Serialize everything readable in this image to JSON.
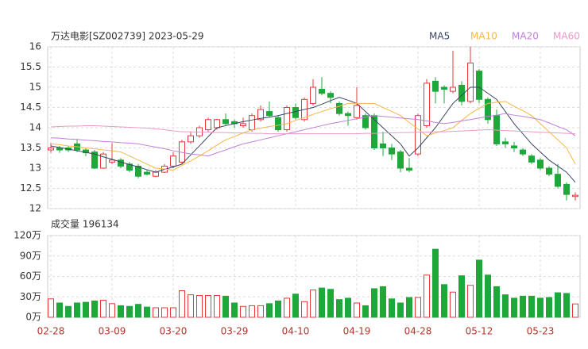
{
  "chart_data": [
    {
      "type": "candlestick",
      "title": "万达电影[SZ002739] 2023-05-29",
      "categories": [
        "02-28",
        null,
        null,
        null,
        null,
        null,
        null,
        "03-09",
        null,
        null,
        null,
        null,
        null,
        null,
        "03-20",
        null,
        null,
        null,
        null,
        null,
        null,
        "03-29",
        null,
        null,
        null,
        null,
        null,
        null,
        "04-10",
        null,
        null,
        null,
        null,
        null,
        null,
        "04-19",
        null,
        null,
        null,
        null,
        null,
        null,
        "04-28",
        null,
        null,
        null,
        null,
        null,
        null,
        "05-12",
        null,
        null,
        null,
        null,
        null,
        null,
        "05-23",
        null,
        null,
        null,
        null
      ],
      "open": [
        13.45,
        13.5,
        13.5,
        13.6,
        13.45,
        13.4,
        13.0,
        13.15,
        13.2,
        13.1,
        13.05,
        12.9,
        12.8,
        12.9,
        13.05,
        13.15,
        13.65,
        13.8,
        13.95,
        14.0,
        14.2,
        14.15,
        14.05,
        13.95,
        14.2,
        14.4,
        14.25,
        13.95,
        14.5,
        14.2,
        14.6,
        14.95,
        14.85,
        14.6,
        14.35,
        14.25,
        14.3,
        14.3,
        13.6,
        13.5,
        13.4,
        13.0,
        13.35,
        14.05,
        15.15,
        15.0,
        14.9,
        15.05,
        14.65,
        15.4,
        14.7,
        14.3,
        13.65,
        13.55,
        13.45,
        13.3,
        13.2,
        13.0,
        12.85,
        12.6,
        12.3
      ],
      "close": [
        13.5,
        13.45,
        13.45,
        13.45,
        13.38,
        13.0,
        13.35,
        13.2,
        13.05,
        12.95,
        12.8,
        12.85,
        12.9,
        13.05,
        13.3,
        13.65,
        13.8,
        14.0,
        14.2,
        14.2,
        14.1,
        14.1,
        14.1,
        14.3,
        14.45,
        14.3,
        13.95,
        14.5,
        14.25,
        14.7,
        15.0,
        14.85,
        14.75,
        14.35,
        14.3,
        14.55,
        14.0,
        13.5,
        13.5,
        13.35,
        13.0,
        12.95,
        14.3,
        15.1,
        14.9,
        14.95,
        15.0,
        14.65,
        15.6,
        14.7,
        14.2,
        13.6,
        13.6,
        13.5,
        13.35,
        13.15,
        13.0,
        12.85,
        12.55,
        12.35,
        12.33
      ],
      "high": [
        13.62,
        13.55,
        13.55,
        13.72,
        13.5,
        13.45,
        13.4,
        13.62,
        13.25,
        13.15,
        13.1,
        12.95,
        12.95,
        13.1,
        13.4,
        13.7,
        13.9,
        14.05,
        14.25,
        14.22,
        14.35,
        14.2,
        14.25,
        14.35,
        14.55,
        14.65,
        14.3,
        14.55,
        14.6,
        14.75,
        15.2,
        15.25,
        14.9,
        14.65,
        14.4,
        15.0,
        14.35,
        14.35,
        13.9,
        13.6,
        13.45,
        13.25,
        14.35,
        15.2,
        15.25,
        15.05,
        15.9,
        15.15,
        16.0,
        15.45,
        14.75,
        14.45,
        13.75,
        13.65,
        13.5,
        13.35,
        13.25,
        13.05,
        13.1,
        12.65,
        12.4
      ],
      "low": [
        13.38,
        13.38,
        13.4,
        13.4,
        13.3,
        12.98,
        12.98,
        13.1,
        13.0,
        12.9,
        12.75,
        12.82,
        12.78,
        12.88,
        13.0,
        13.1,
        13.6,
        13.75,
        13.9,
        13.95,
        14.05,
        14.0,
        14.0,
        13.9,
        14.15,
        14.25,
        13.9,
        13.9,
        14.2,
        14.15,
        14.55,
        14.8,
        14.6,
        14.3,
        14.05,
        14.2,
        13.95,
        13.45,
        13.3,
        13.2,
        12.9,
        12.9,
        13.3,
        14.0,
        14.6,
        14.6,
        14.85,
        14.55,
        14.6,
        14.6,
        14.1,
        13.55,
        13.5,
        13.4,
        13.3,
        13.1,
        12.95,
        12.8,
        12.5,
        12.2,
        12.2
      ],
      "up_color": "#e8383d",
      "down_color": "#1fa83a",
      "series": [
        {
          "name": "MA5",
          "color": "#3b4663",
          "values": [
            13.55,
            13.51,
            13.47,
            13.43,
            13.39,
            13.35,
            13.28,
            13.22,
            13.15,
            13.09,
            13.03,
            12.96,
            12.9,
            12.97,
            13.03,
            13.1,
            13.33,
            13.55,
            13.78,
            14.0,
            14.05,
            14.1,
            14.15,
            14.19,
            14.23,
            14.26,
            14.3,
            14.35,
            14.4,
            14.45,
            14.5,
            14.58,
            14.67,
            14.75,
            14.68,
            14.6,
            14.4,
            14.2,
            14.0,
            13.8,
            13.6,
            13.3,
            13.5,
            13.75,
            14.0,
            14.3,
            14.6,
            14.8,
            15.0,
            15.0,
            14.85,
            14.7,
            14.4,
            14.1,
            13.85,
            13.6,
            13.4,
            13.2,
            13.05,
            12.9,
            12.65
          ]
        },
        {
          "name": "MA10",
          "color": "#f5b84a",
          "values": [
            13.6,
            13.58,
            13.55,
            13.53,
            13.5,
            13.48,
            13.45,
            13.43,
            13.4,
            13.3,
            13.2,
            13.1,
            13.0,
            12.98,
            12.95,
            13.07,
            13.18,
            13.3,
            13.43,
            13.57,
            13.7,
            13.78,
            13.87,
            13.95,
            13.99,
            14.03,
            14.06,
            14.1,
            14.18,
            14.25,
            14.33,
            14.4,
            14.47,
            14.53,
            14.6,
            14.6,
            14.6,
            14.6,
            14.5,
            14.4,
            14.3,
            14.13,
            13.97,
            13.8,
            13.87,
            13.93,
            14.0,
            14.18,
            14.35,
            14.48,
            14.6,
            14.63,
            14.65,
            14.53,
            14.42,
            14.3,
            14.1,
            13.9,
            13.7,
            13.5,
            13.1
          ]
        },
        {
          "name": "MA20",
          "color": "#c17fd8",
          "values": [
            13.75,
            13.74,
            13.72,
            13.71,
            13.69,
            13.68,
            13.66,
            13.65,
            13.63,
            13.62,
            13.6,
            13.56,
            13.52,
            13.48,
            13.43,
            13.39,
            13.35,
            13.33,
            13.3,
            13.38,
            13.45,
            13.53,
            13.6,
            13.65,
            13.7,
            13.75,
            13.8,
            13.85,
            13.9,
            13.95,
            14.0,
            14.05,
            14.1,
            14.14,
            14.18,
            14.22,
            14.26,
            14.3,
            14.28,
            14.26,
            14.24,
            14.22,
            14.2,
            14.17,
            14.13,
            14.1,
            14.13,
            14.17,
            14.2,
            14.24,
            14.28,
            14.31,
            14.35,
            14.31,
            14.28,
            14.24,
            14.2,
            14.12,
            14.03,
            13.95,
            13.8
          ]
        },
        {
          "name": "MA60",
          "color": "#e99bc9",
          "values": [
            14.02,
            14.03,
            14.04,
            14.04,
            14.05,
            14.05,
            14.04,
            14.03,
            14.02,
            14.01,
            14.0,
            13.99,
            13.97,
            13.95,
            13.92,
            13.9,
            13.9,
            13.89,
            13.89,
            13.88,
            13.88,
            13.87,
            13.87,
            13.86,
            13.86,
            13.85,
            13.85,
            13.85,
            13.85,
            13.85,
            13.85,
            13.85,
            13.85,
            13.85,
            13.85,
            13.85,
            13.86,
            13.86,
            13.87,
            13.87,
            13.88,
            13.88,
            13.89,
            13.89,
            13.9,
            13.9,
            13.91,
            13.92,
            13.93,
            13.94,
            13.95,
            13.94,
            13.93,
            13.92,
            13.91,
            13.9,
            13.89,
            13.88,
            13.87,
            13.86,
            13.85
          ]
        }
      ],
      "ylim": [
        12,
        16
      ],
      "yticks": [
        12,
        12.5,
        13,
        13.5,
        14,
        14.5,
        15,
        15.5,
        16
      ],
      "grid": true
    },
    {
      "type": "bar",
      "title": "成交量 196134",
      "values": [
        27,
        21,
        16,
        21,
        22,
        24,
        25,
        20,
        17,
        16,
        19,
        15,
        14,
        14,
        14,
        39,
        33,
        32,
        32,
        32,
        31,
        21,
        16,
        17,
        17,
        20,
        24,
        28,
        34,
        23,
        40,
        43,
        41,
        26,
        28,
        21,
        17,
        42,
        45,
        27,
        21,
        29,
        29,
        62,
        100,
        48,
        37,
        61,
        47,
        84,
        62,
        45,
        33,
        28,
        31,
        31,
        28,
        29,
        36,
        35,
        19.61
      ],
      "ylim": [
        0,
        120
      ],
      "yticks": [
        {
          "value": 0,
          "label": "0万"
        },
        {
          "value": 30,
          "label": "30万"
        },
        {
          "value": 60,
          "label": "60万"
        },
        {
          "value": 90,
          "label": "90万"
        },
        {
          "value": 120,
          "label": "120万"
        }
      ],
      "grid": true
    }
  ]
}
